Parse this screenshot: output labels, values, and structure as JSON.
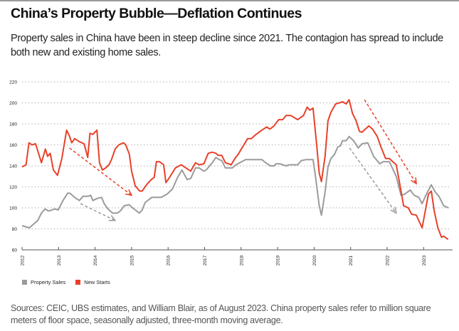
{
  "title": "China’s Property Bubble—Deflation Continues",
  "subtitle": "Property sales in China have been in steep decline since 2021. The contagion has spread to include both new and existing home sales.",
  "footer": "Sources: CEIC, UBS estimates, and William Blair, as of August 2023. China property sales refer to million square meters of floor space, seasonally adjusted, three-month moving average.",
  "chart_data": {
    "type": "line",
    "title": "",
    "xlabel": "",
    "ylabel": "",
    "ylim": [
      60,
      220
    ],
    "xlim": [
      2012,
      2023.7
    ],
    "yticks": [
      "60",
      "80",
      "100",
      "120",
      "140",
      "160",
      "180",
      "200",
      "220"
    ],
    "xticks": [
      "2012",
      "2013",
      "2014",
      "2015",
      "2016",
      "2017",
      "2018",
      "2019",
      "2020",
      "2021",
      "2022",
      "2023"
    ],
    "grid": "horizontal dotted",
    "legend_position": "bottom-left",
    "series": [
      {
        "name": "Property Sales",
        "color": "#9b9b9b",
        "x": [
          2012.0,
          2012.2,
          2012.43,
          2012.53,
          2012.63,
          2012.72,
          2012.82,
          2012.89,
          2012.99,
          2013.12,
          2013.25,
          2013.31,
          2013.44,
          2013.57,
          2013.67,
          2013.8,
          2013.88,
          2013.94,
          2014.06,
          2014.18,
          2014.25,
          2014.35,
          2014.48,
          2014.61,
          2014.69,
          2014.8,
          2014.93,
          2015.03,
          2015.21,
          2015.29,
          2015.37,
          2015.55,
          2015.81,
          2015.97,
          2016.12,
          2016.26,
          2016.38,
          2016.52,
          2016.62,
          2016.75,
          2016.85,
          2016.98,
          2017.04,
          2017.21,
          2017.31,
          2017.4,
          2017.47,
          2017.57,
          2017.76,
          2017.86,
          2018.12,
          2018.57,
          2018.67,
          2018.8,
          2018.9,
          2018.96,
          2019.06,
          2019.23,
          2019.32,
          2019.55,
          2019.65,
          2019.78,
          2019.97,
          2020.04,
          2020.14,
          2020.2,
          2020.3,
          2020.38,
          2020.46,
          2020.56,
          2020.65,
          2020.72,
          2020.78,
          2020.88,
          2020.96,
          2021.08,
          2021.21,
          2021.31,
          2021.47,
          2021.63,
          2021.8,
          2021.89,
          2022.06,
          2022.25,
          2022.38,
          2022.48,
          2022.63,
          2022.74,
          2022.87,
          2022.96,
          2023.06,
          2023.21,
          2023.32,
          2023.42,
          2023.55,
          2023.68
        ],
        "values": [
          83,
          81,
          88,
          95,
          99,
          97,
          98,
          99,
          98,
          107,
          114,
          114,
          110,
          107,
          111,
          111,
          112,
          107,
          109,
          110,
          104,
          99,
          95,
          95,
          97,
          102,
          103,
          100,
          95,
          98,
          105,
          110,
          110,
          113,
          118,
          129,
          136,
          127,
          128,
          138,
          138,
          135,
          136,
          143,
          148,
          146,
          145,
          138,
          138,
          141,
          146,
          146,
          143,
          140,
          140,
          142,
          142,
          140,
          141,
          141,
          145,
          146,
          146,
          129,
          102,
          93,
          115,
          139,
          147,
          151,
          158,
          159,
          164,
          164,
          168,
          164,
          157,
          161,
          162,
          149,
          142,
          144,
          144,
          130,
          112,
          113,
          117,
          112,
          110,
          104,
          112,
          122,
          115,
          111,
          102,
          100
        ]
      },
      {
        "name": "New Starts",
        "color": "#e8412a",
        "x": [
          2012.0,
          2012.11,
          2012.19,
          2012.27,
          2012.37,
          2012.53,
          2012.64,
          2012.7,
          2012.77,
          2012.86,
          2012.97,
          2013.09,
          2013.22,
          2013.29,
          2013.36,
          2013.44,
          2013.57,
          2013.7,
          2013.8,
          2013.86,
          2013.94,
          2014.05,
          2014.12,
          2014.2,
          2014.29,
          2014.38,
          2014.45,
          2014.55,
          2014.65,
          2014.78,
          2014.84,
          2014.94,
          2015.0,
          2015.1,
          2015.22,
          2015.29,
          2015.41,
          2015.54,
          2015.62,
          2015.68,
          2015.76,
          2015.88,
          2015.94,
          2016.04,
          2016.2,
          2016.36,
          2016.49,
          2016.62,
          2016.75,
          2016.85,
          2016.98,
          2017.1,
          2017.21,
          2017.31,
          2017.37,
          2017.47,
          2017.57,
          2017.73,
          2017.83,
          2017.92,
          2018.18,
          2018.28,
          2018.41,
          2018.57,
          2018.7,
          2018.79,
          2018.9,
          2019.03,
          2019.14,
          2019.23,
          2019.36,
          2019.55,
          2019.71,
          2019.81,
          2019.88,
          2019.97,
          2020.07,
          2020.14,
          2020.2,
          2020.3,
          2020.38,
          2020.46,
          2020.59,
          2020.69,
          2020.78,
          2020.88,
          2020.96,
          2021.05,
          2021.15,
          2021.24,
          2021.31,
          2021.5,
          2021.6,
          2021.73,
          2021.83,
          2021.96,
          2022.06,
          2022.25,
          2022.35,
          2022.45,
          2022.58,
          2022.67,
          2022.8,
          2022.96,
          2023.13,
          2023.21,
          2023.29,
          2023.39,
          2023.49,
          2023.55,
          2023.67
        ],
        "values": [
          139,
          141,
          162,
          160,
          161,
          143,
          156,
          149,
          152,
          136,
          131,
          147,
          174,
          169,
          162,
          166,
          163,
          161,
          148,
          171,
          170,
          174,
          143,
          136,
          138,
          141,
          146,
          156,
          160,
          162,
          160,
          151,
          135,
          121,
          116,
          116,
          122,
          127,
          129,
          144,
          144,
          141,
          124,
          129,
          138,
          141,
          138,
          135,
          143,
          141,
          142,
          152,
          153,
          152,
          150,
          150,
          143,
          141,
          147,
          151,
          166,
          166,
          170,
          174,
          177,
          175,
          178,
          184,
          184,
          188,
          188,
          184,
          188,
          196,
          193,
          195,
          160,
          133,
          125,
          149,
          183,
          191,
          199,
          200,
          201,
          199,
          203,
          190,
          183,
          173,
          172,
          178,
          175,
          168,
          158,
          147,
          147,
          141,
          122,
          102,
          100,
          94,
          93,
          81,
          113,
          116,
          97,
          81,
          72,
          73,
          70
        ]
      }
    ],
    "annotations": [
      {
        "type": "dashed-arrow",
        "color": "#e8412a",
        "from": [
          2013.3,
          157
        ],
        "to": [
          2015.0,
          112
        ]
      },
      {
        "type": "dashed-arrow",
        "color": "#9b9b9b",
        "from": [
          2013.6,
          104
        ],
        "to": [
          2014.55,
          88
        ]
      },
      {
        "type": "dashed-arrow",
        "color": "#e8412a",
        "from": [
          2021.38,
          203
        ],
        "to": [
          2022.8,
          123
        ]
      },
      {
        "type": "dashed-arrow",
        "color": "#9b9b9b",
        "from": [
          2020.97,
          157
        ],
        "to": [
          2022.25,
          95
        ]
      }
    ]
  }
}
